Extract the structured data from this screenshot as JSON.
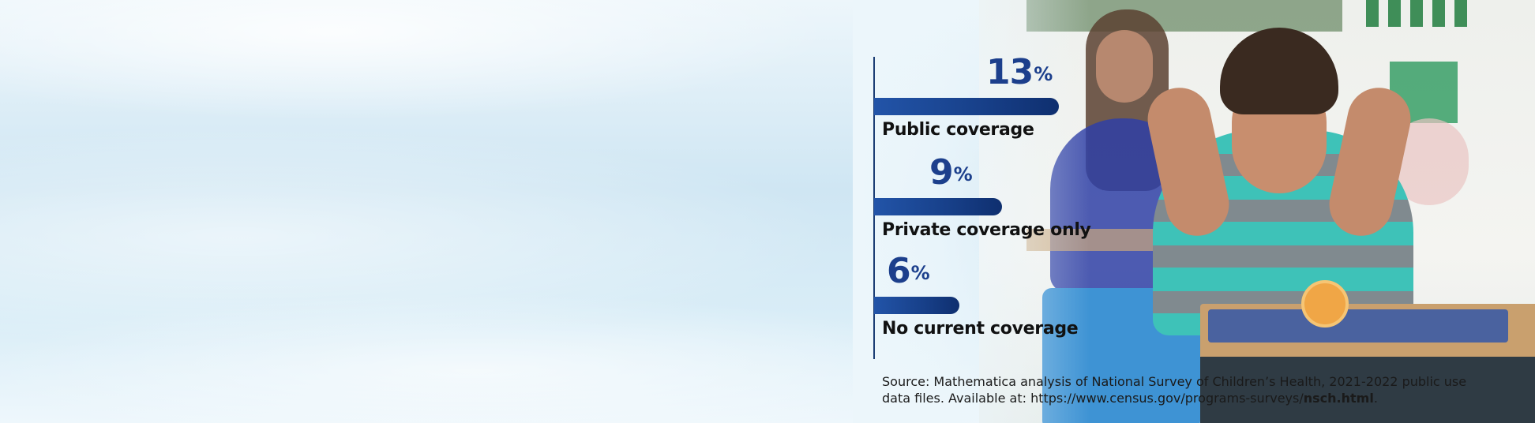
{
  "chart_data": {
    "type": "bar",
    "orientation": "horizontal",
    "categories": [
      "Public coverage",
      "Private coverage only",
      "No current coverage"
    ],
    "values": [
      13,
      9,
      6
    ],
    "value_labels": [
      "13",
      "9",
      "6"
    ],
    "unit": "%",
    "xlim": [
      0,
      13
    ],
    "grid": false,
    "legend": "none",
    "colors": {
      "bar": "#173f88",
      "value_label": "#1c3f8c",
      "axis": "#1b3d74",
      "category_label": "#111111"
    }
  },
  "source": {
    "prefix": "Source: Mathematica analysis of National Survey of Children’s Health, 2021-2022 public use data files. Available at: https://www.census.gov/programs-surveys/",
    "bold": "nsch.html",
    "suffix": "."
  }
}
